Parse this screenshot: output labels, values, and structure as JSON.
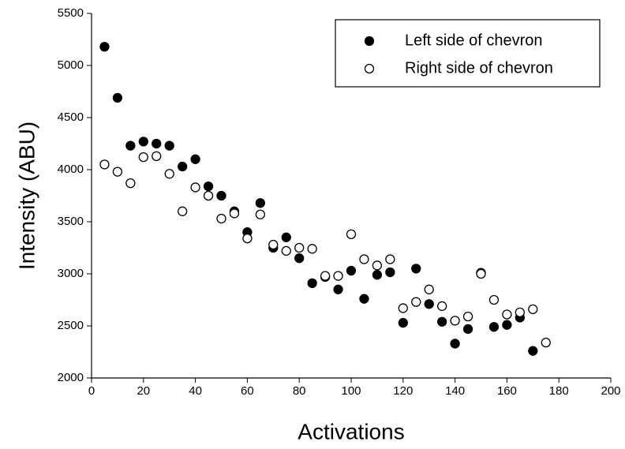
{
  "chart_data": {
    "type": "scatter",
    "xlabel": "Activations",
    "ylabel": "Intensity (ABU)",
    "xlim": [
      0,
      200
    ],
    "xticks": [
      0,
      20,
      40,
      60,
      80,
      100,
      120,
      140,
      160,
      180,
      200
    ],
    "ylim": [
      2000,
      5500
    ],
    "yticks": [
      2000,
      2500,
      3000,
      3500,
      4000,
      4500,
      5000,
      5500
    ],
    "grid": false,
    "legend_position": "upper-right",
    "series": [
      {
        "name": "Left side of chevron",
        "color": "#000000",
        "filled": true,
        "x": [
          5,
          10,
          15,
          20,
          25,
          30,
          35,
          40,
          45,
          50,
          55,
          60,
          65,
          70,
          75,
          80,
          85,
          90,
          95,
          100,
          105,
          110,
          115,
          120,
          125,
          130,
          135,
          140,
          145,
          150,
          155,
          160,
          165,
          170
        ],
        "values": [
          5180,
          4690,
          4230,
          4270,
          4250,
          4230,
          4030,
          4100,
          3840,
          3750,
          3600,
          3400,
          3680,
          3250,
          3350,
          3150,
          2910,
          2970,
          2850,
          3030,
          2760,
          2990,
          3015,
          2530,
          3050,
          2710,
          2540,
          2330,
          2470,
          3010,
          2490,
          2510,
          2580,
          2260
        ]
      },
      {
        "name": "Right side of chevron",
        "color": "#000000",
        "filled": false,
        "x": [
          5,
          10,
          15,
          20,
          25,
          30,
          35,
          40,
          45,
          50,
          55,
          60,
          65,
          70,
          75,
          80,
          85,
          90,
          95,
          100,
          105,
          110,
          115,
          120,
          125,
          130,
          135,
          140,
          145,
          150,
          155,
          160,
          165,
          170,
          175
        ],
        "values": [
          4050,
          3980,
          3870,
          4120,
          4130,
          3960,
          3600,
          3830,
          3750,
          3530,
          3580,
          3340,
          3570,
          3280,
          3220,
          3250,
          3240,
          2980,
          2980,
          3380,
          3140,
          3080,
          3140,
          2670,
          2730,
          2850,
          2690,
          2550,
          2590,
          3000,
          2750,
          2610,
          2630,
          2660,
          2340
        ]
      }
    ]
  }
}
